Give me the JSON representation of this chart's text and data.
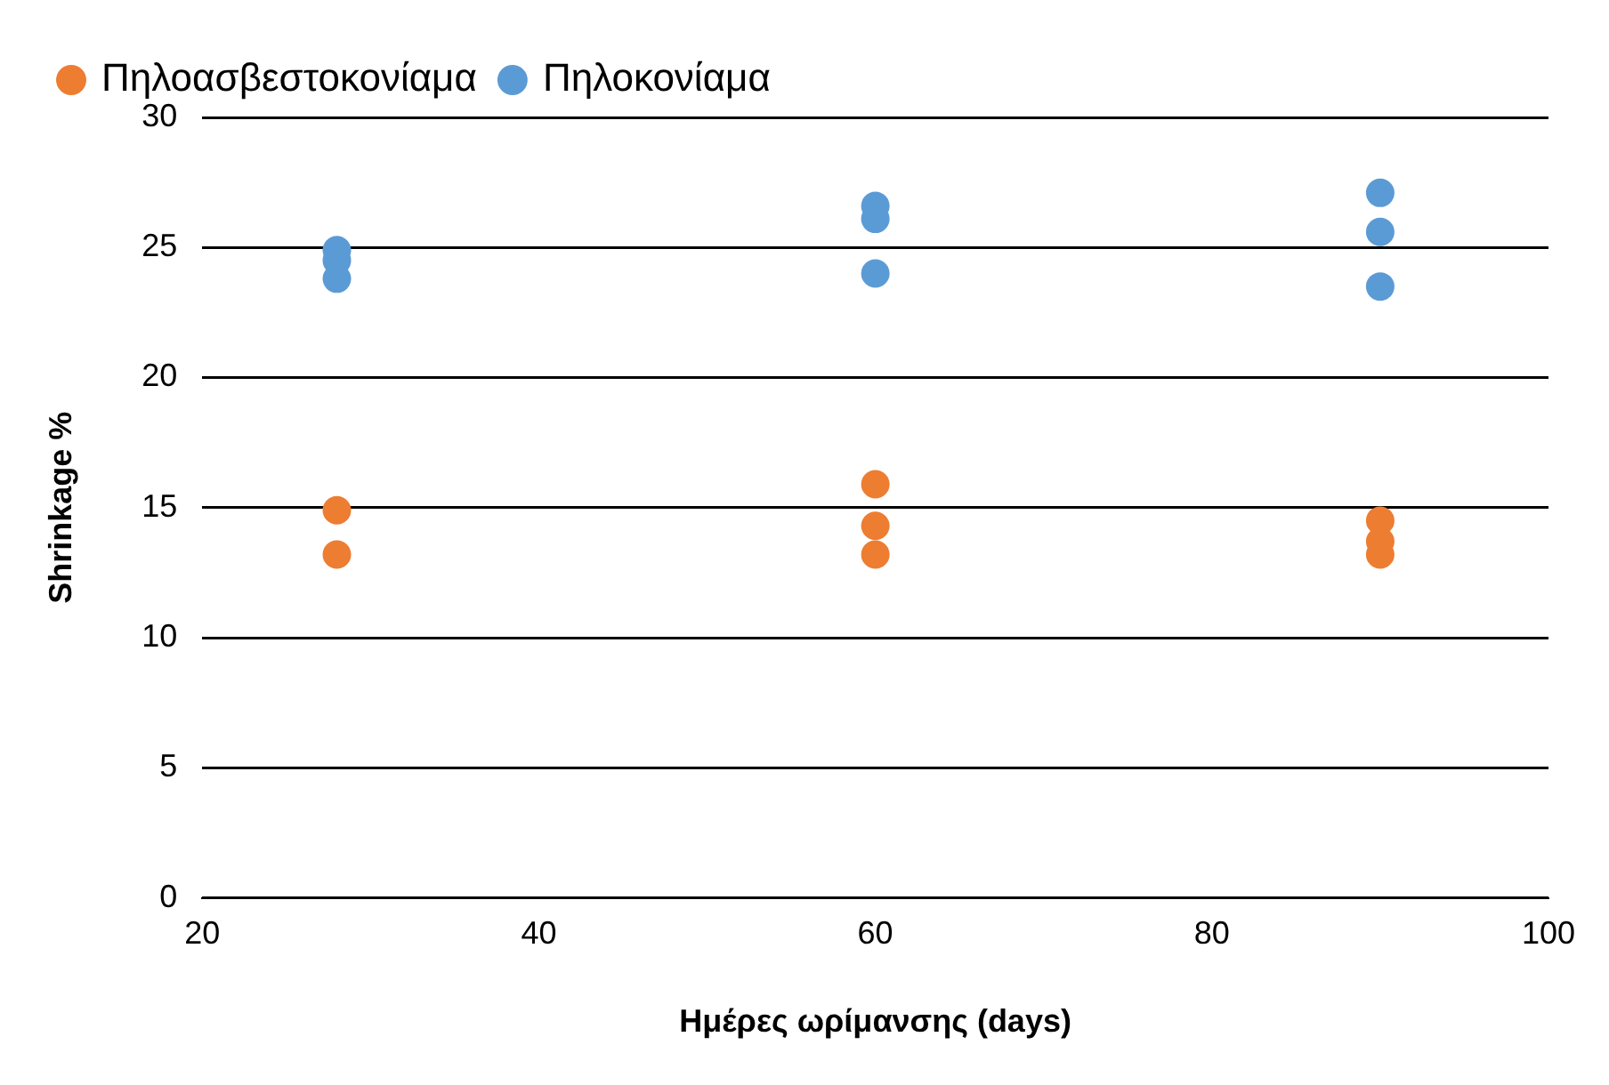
{
  "chart_data": {
    "type": "scatter",
    "xlabel": "Ημέρες ωρίμανσης (days)",
    "ylabel": "Shrinkage %",
    "series": [
      {
        "name": "Πηλοασβεστοκονίαμα",
        "color": "#ed7d31",
        "x": [
          28,
          28,
          60,
          60,
          60,
          90,
          90,
          90
        ],
        "values": [
          14.9,
          13.2,
          15.9,
          14.3,
          13.2,
          14.5,
          13.7,
          13.2
        ]
      },
      {
        "name": "Πηλοκονίαμα",
        "color": "#5b9bd5",
        "x": [
          28,
          28,
          28,
          60,
          60,
          60,
          90,
          90,
          90
        ],
        "values": [
          24.9,
          24.5,
          23.8,
          26.6,
          26.1,
          24.0,
          27.1,
          25.6,
          23.5
        ]
      }
    ],
    "xlim": [
      20,
      100
    ],
    "xticks": [
      20,
      40,
      60,
      80,
      100
    ],
    "ylim": [
      0,
      30
    ],
    "yticks": [
      0,
      5,
      10,
      15,
      20,
      25,
      30
    ],
    "grid": "y",
    "legend": "top left",
    "marker": "circle"
  }
}
